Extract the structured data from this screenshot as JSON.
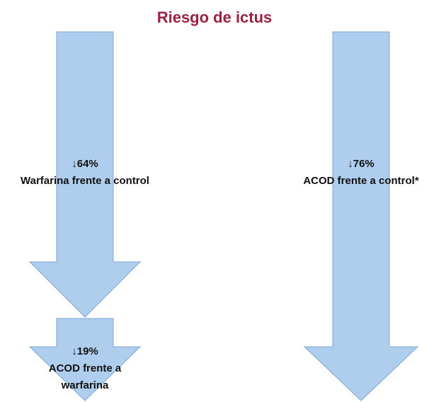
{
  "title": "Riesgo de ictus",
  "arrows": [
    {
      "change": "↓64%",
      "lines": [
        "Warfarina frente a control"
      ]
    },
    {
      "change": "↓19%",
      "lines": [
        "ACOD frente a",
        "warfarina"
      ]
    },
    {
      "change": "↓76%",
      "lines": [
        "ACOD frente a control*"
      ]
    }
  ]
}
